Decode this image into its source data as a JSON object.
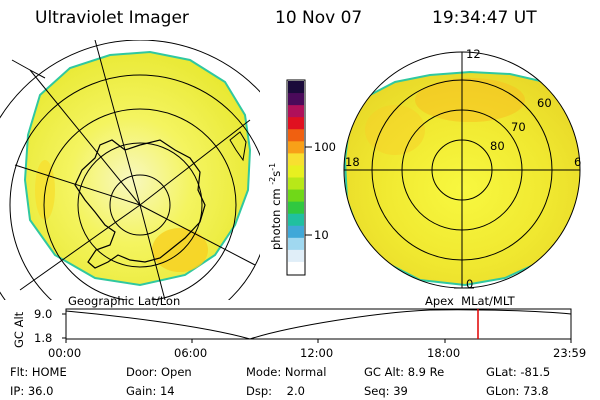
{
  "header": {
    "instrument": "Ultraviolet Imager",
    "date": "10 Nov 07",
    "time": "19:34:47 UT"
  },
  "colorbar": {
    "unit_label": "photon cm",
    "unit_exp1": "-2",
    "unit_mid": "s",
    "unit_exp2": "-1",
    "ticks": [
      "100",
      "10"
    ],
    "colors": [
      "#1a0a3a",
      "#4a0a5a",
      "#b0105a",
      "#e01020",
      "#f06010",
      "#f8a018",
      "#f8e030",
      "#e8f020",
      "#b8e818",
      "#70d818",
      "#30c840",
      "#20c0a0",
      "#40a8d8",
      "#a0d8f0",
      "#e0eef8",
      "#ffffff"
    ]
  },
  "left_map": {
    "label": "Geographic Lat/Lon",
    "fill_color": "#f0f040",
    "edge_color": "#30c8a0"
  },
  "right_map": {
    "label": "Apex  MLat/MLT",
    "lat_labels": [
      "60",
      "70",
      "80"
    ],
    "mlt_labels": {
      "top": "12",
      "bottom": "0",
      "left": "18",
      "right": "6"
    }
  },
  "timeline": {
    "axis_title": "GC Alt",
    "y_ticks": [
      "9.0",
      "1.8"
    ],
    "x_ticks": [
      "00:00",
      "06:00",
      "12:00",
      "18:00",
      "23:59"
    ],
    "current_time_hours": 19.58,
    "marker_color": "#e00000"
  },
  "status": {
    "row1": [
      {
        "label": "Flt:",
        "value": "HOME"
      },
      {
        "label": "Door:",
        "value": "Open"
      },
      {
        "label": "Mode:",
        "value": "Normal"
      },
      {
        "label": "GC Alt:",
        "value": "8.9 Re"
      },
      {
        "label": "GLat:",
        "value": "-81.5"
      }
    ],
    "row2": [
      {
        "label": "IP:",
        "value": "36.0"
      },
      {
        "label": "Gain:",
        "value": "14"
      },
      {
        "label": "Dsp:",
        "value": "2.0"
      },
      {
        "label": "Seq:",
        "value": "39"
      },
      {
        "label": "GLon:",
        "value": "73.8"
      }
    ]
  }
}
